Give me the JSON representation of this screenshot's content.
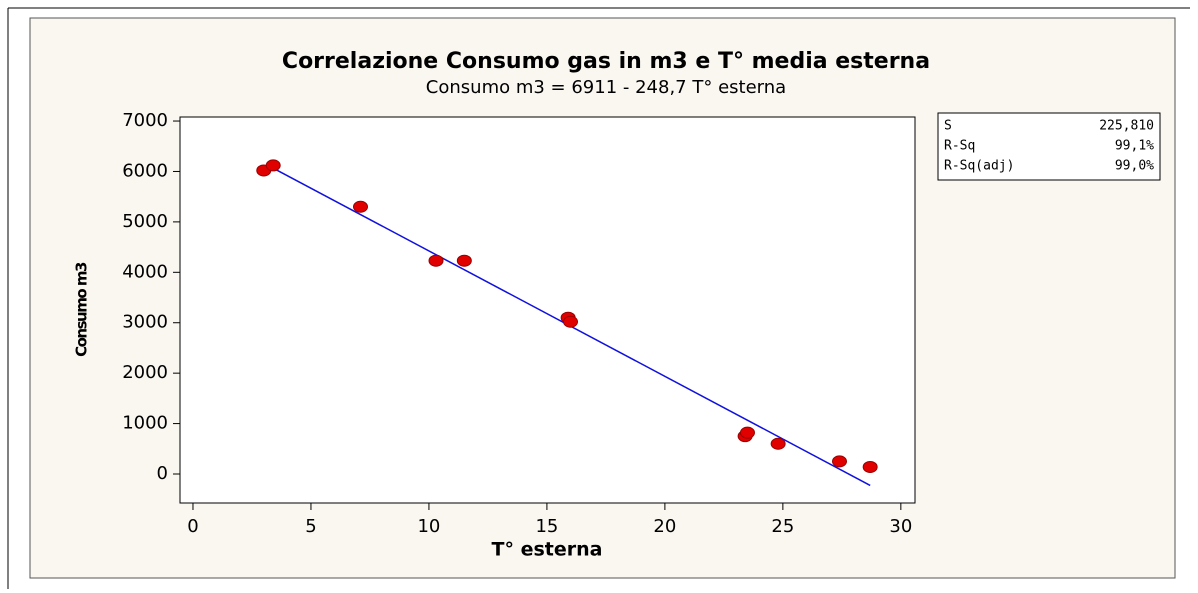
{
  "chart_data": {
    "type": "scatter",
    "title": "Correlazione Consumo gas in m3 e T° media esterna",
    "subtitle": "Consumo m3 =  6911 - 248,7 T° esterna",
    "x_label": "T° esterna",
    "y_label": "Consumo m3",
    "x": [
      3.0,
      3.4,
      7.1,
      10.3,
      11.5,
      15.9,
      16.0,
      23.4,
      23.5,
      24.8,
      27.4,
      28.7
    ],
    "values": [
      6020,
      6120,
      5300,
      4230,
      4230,
      3100,
      3020,
      750,
      820,
      600,
      250,
      140
    ],
    "color": "#e00000",
    "fit_line": {
      "x": [
        3.2,
        28.7
      ],
      "values": [
        6115,
        -227
      ],
      "color": "#1010e0"
    },
    "xlim": [
      -0.55,
      30.6
    ],
    "ylim": [
      -575,
      7080
    ],
    "xticks": [
      0,
      5,
      10,
      15,
      20,
      25,
      30
    ],
    "yticks": [
      0,
      1000,
      2000,
      3000,
      4000,
      5000,
      6000,
      7000
    ],
    "stats": [
      [
        "S",
        "225,810"
      ],
      [
        "R-Sq",
        "99,1%"
      ],
      [
        "R-Sq(adj)",
        "99,0%"
      ]
    ]
  }
}
